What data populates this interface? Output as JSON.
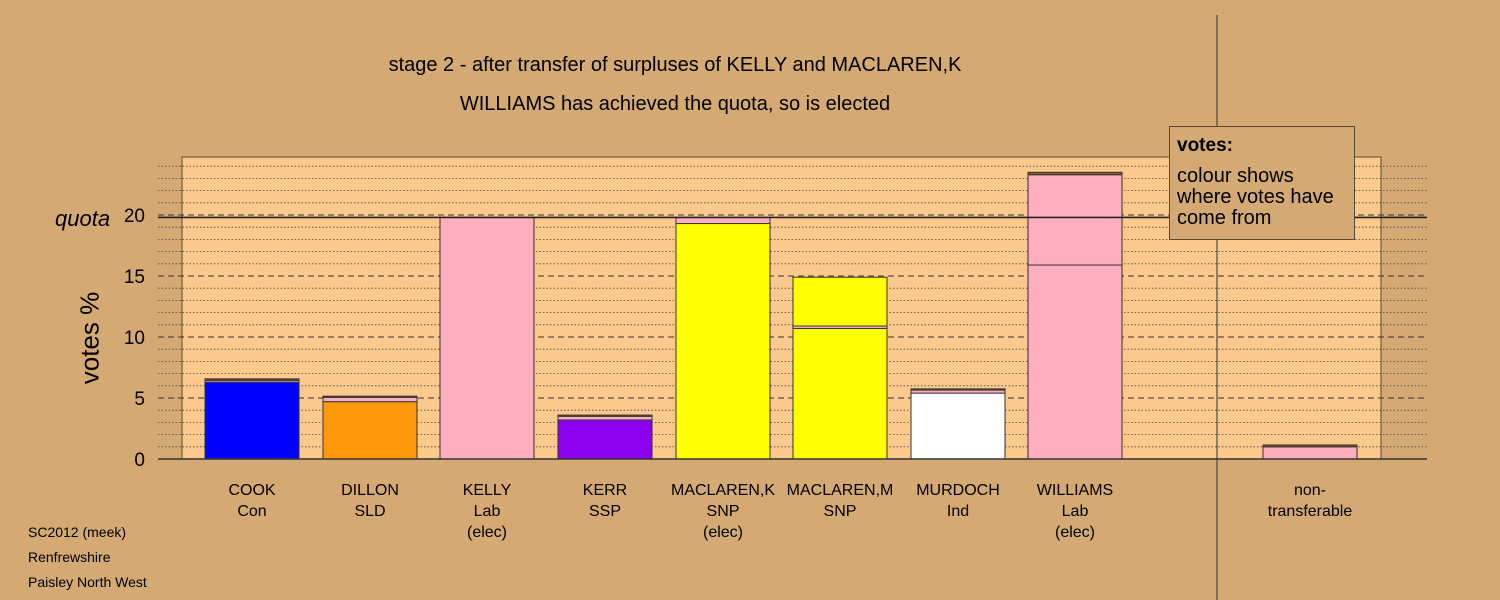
{
  "header": {
    "title": "stage 2 - after transfer of surpluses of KELLY and MACLAREN,K",
    "subtitle": "WILLIAMS has achieved the quota, so is elected"
  },
  "footer": {
    "line1": "SC2012 (meek)",
    "line2": "Renfrewshire",
    "line3": "Paisley North West"
  },
  "legend": {
    "title": "votes:",
    "text": "colour shows where votes have come from"
  },
  "colors": {
    "background": "#d4a973",
    "plot_area": "#fcc98d",
    "con": "#0000ff",
    "sld": "#ff9909",
    "lab": "#ffaec0",
    "ssp": "#8c00f0",
    "snp": "#ffff00",
    "ind": "#ffffff",
    "brown": "#8b5a14"
  },
  "chart_data": {
    "type": "bar",
    "stacked": true,
    "ylabel": "votes %",
    "quota_label": "quota",
    "quota": 19.8,
    "ylim": [
      0,
      25
    ],
    "yticks": [
      0,
      5,
      10,
      15,
      20
    ],
    "grid": true,
    "candidates": [
      {
        "name": "COOK",
        "party": "Con",
        "status": "",
        "segments": [
          {
            "from": "Con",
            "value": 6.3,
            "color": "#0000ff"
          },
          {
            "from": "Lab",
            "value": 0.15,
            "color": "#ffaec0"
          },
          {
            "from": "SNP",
            "value": 0.12,
            "color": "#8b5a14"
          }
        ]
      },
      {
        "name": "DILLON",
        "party": "SLD",
        "status": "",
        "segments": [
          {
            "from": "SLD",
            "value": 4.7,
            "color": "#ff9909"
          },
          {
            "from": "Lab",
            "value": 0.35,
            "color": "#ffaec0"
          },
          {
            "from": "SNP",
            "value": 0.1,
            "color": "#8b5a14"
          }
        ]
      },
      {
        "name": "KELLY",
        "party": "Lab",
        "status": "(elec)",
        "segments": [
          {
            "from": "Lab",
            "value": 19.8,
            "color": "#ffaec0"
          }
        ]
      },
      {
        "name": "KERR",
        "party": "SSP",
        "status": "",
        "segments": [
          {
            "from": "SSP",
            "value": 3.2,
            "color": "#8c00f0"
          },
          {
            "from": "Lab",
            "value": 0.3,
            "color": "#ffaec0"
          },
          {
            "from": "SNP",
            "value": 0.1,
            "color": "#8b5a14"
          }
        ]
      },
      {
        "name": "MACLAREN,K",
        "party": "SNP",
        "status": "(elec)",
        "segments": [
          {
            "from": "SNP",
            "value": 19.3,
            "color": "#ffff00"
          },
          {
            "from": "Lab",
            "value": 0.5,
            "color": "#ffaec0"
          }
        ]
      },
      {
        "name": "MACLAREN,M",
        "party": "SNP",
        "status": "",
        "segments": [
          {
            "from": "SNP",
            "value": 10.7,
            "color": "#ffff00"
          },
          {
            "from": "Lab",
            "value": 0.2,
            "color": "#ffaec0"
          },
          {
            "from": "SNP (KELLY/MACLAREN,K)",
            "value": 4.0,
            "color": "#ffff00"
          }
        ]
      },
      {
        "name": "MURDOCH",
        "party": "Ind",
        "status": "",
        "segments": [
          {
            "from": "Ind",
            "value": 5.4,
            "color": "#ffffff"
          },
          {
            "from": "Lab",
            "value": 0.25,
            "color": "#ffaec0"
          },
          {
            "from": "SNP",
            "value": 0.1,
            "color": "#8b5a14"
          }
        ]
      },
      {
        "name": "WILLIAMS",
        "party": "Lab",
        "status": "(elec)",
        "segments": [
          {
            "from": "Lab",
            "value": 15.9,
            "color": "#ffaec0"
          },
          {
            "from": "Lab (KELLY)",
            "value": 7.4,
            "color": "#ffaec0"
          },
          {
            "from": "SNP",
            "value": 0.2,
            "color": "#8b5a14"
          }
        ]
      },
      {
        "name": "non-",
        "party": "transferable",
        "status": "",
        "segments": [
          {
            "from": "Lab",
            "value": 1.0,
            "color": "#ffaec0"
          },
          {
            "from": "SNP",
            "value": 0.15,
            "color": "#8b5a14"
          }
        ]
      }
    ]
  }
}
